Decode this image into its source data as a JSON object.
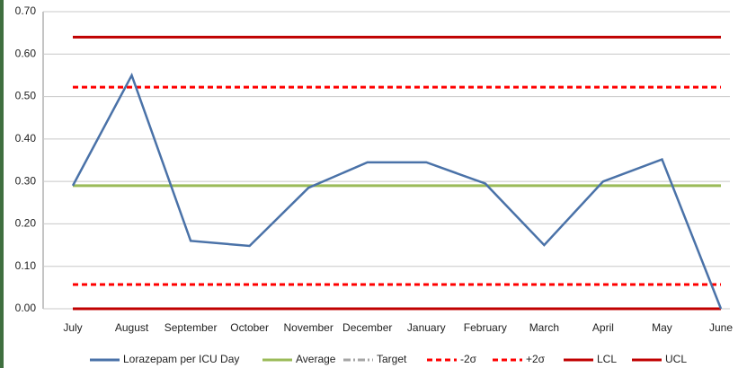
{
  "chart_data": {
    "type": "line",
    "categories": [
      "July",
      "August",
      "September",
      "October",
      "November",
      "December",
      "January",
      "February",
      "March",
      "April",
      "May",
      "June"
    ],
    "series": [
      {
        "name": "Lorazepam per ICU Day",
        "color": "#4a72a8",
        "dash": "solid",
        "values": [
          0.29,
          0.55,
          0.16,
          0.148,
          0.285,
          0.345,
          0.345,
          0.295,
          0.15,
          0.3,
          0.352,
          0.0
        ]
      },
      {
        "name": "Average",
        "color": "#9bbb59",
        "dash": "solid",
        "values": [
          0.29,
          0.29,
          0.29,
          0.29,
          0.29,
          0.29,
          0.29,
          0.29,
          0.29,
          0.29,
          0.29,
          0.29
        ]
      },
      {
        "name": "Target",
        "color": "#a6a6a6",
        "dash": "dashdot",
        "values": [
          null,
          null,
          null,
          null,
          null,
          null,
          null,
          null,
          null,
          null,
          null,
          null
        ]
      },
      {
        "name": "-2σ",
        "color": "#ff0000",
        "dash": "dash",
        "values": [
          0.057,
          0.057,
          0.057,
          0.057,
          0.057,
          0.057,
          0.057,
          0.057,
          0.057,
          0.057,
          0.057,
          0.057
        ]
      },
      {
        "name": "+2σ",
        "color": "#ff0000",
        "dash": "dash",
        "values": [
          0.522,
          0.522,
          0.522,
          0.522,
          0.522,
          0.522,
          0.522,
          0.522,
          0.522,
          0.522,
          0.522,
          0.522
        ]
      },
      {
        "name": "LCL",
        "color": "#c00000",
        "dash": "solid",
        "values": [
          0.0,
          0.0,
          0.0,
          0.0,
          0.0,
          0.0,
          0.0,
          0.0,
          0.0,
          0.0,
          0.0,
          0.0
        ]
      },
      {
        "name": "UCL",
        "color": "#c00000",
        "dash": "solid",
        "values": [
          0.64,
          0.64,
          0.64,
          0.64,
          0.64,
          0.64,
          0.64,
          0.64,
          0.64,
          0.64,
          0.64,
          0.64
        ]
      }
    ],
    "ylim": [
      0,
      0.7
    ],
    "yticks": [
      {
        "value": 0,
        "label": "0.00"
      },
      {
        "value": 0.1,
        "label": "0.10"
      },
      {
        "value": 0.2,
        "label": "0.20"
      },
      {
        "value": 0.3,
        "label": "0.30"
      },
      {
        "value": 0.4,
        "label": "0.40"
      },
      {
        "value": 0.5,
        "label": "0.50"
      },
      {
        "value": 0.6,
        "label": "0.60"
      },
      {
        "value": 0.7,
        "label": "0.70"
      }
    ],
    "grid": true
  }
}
